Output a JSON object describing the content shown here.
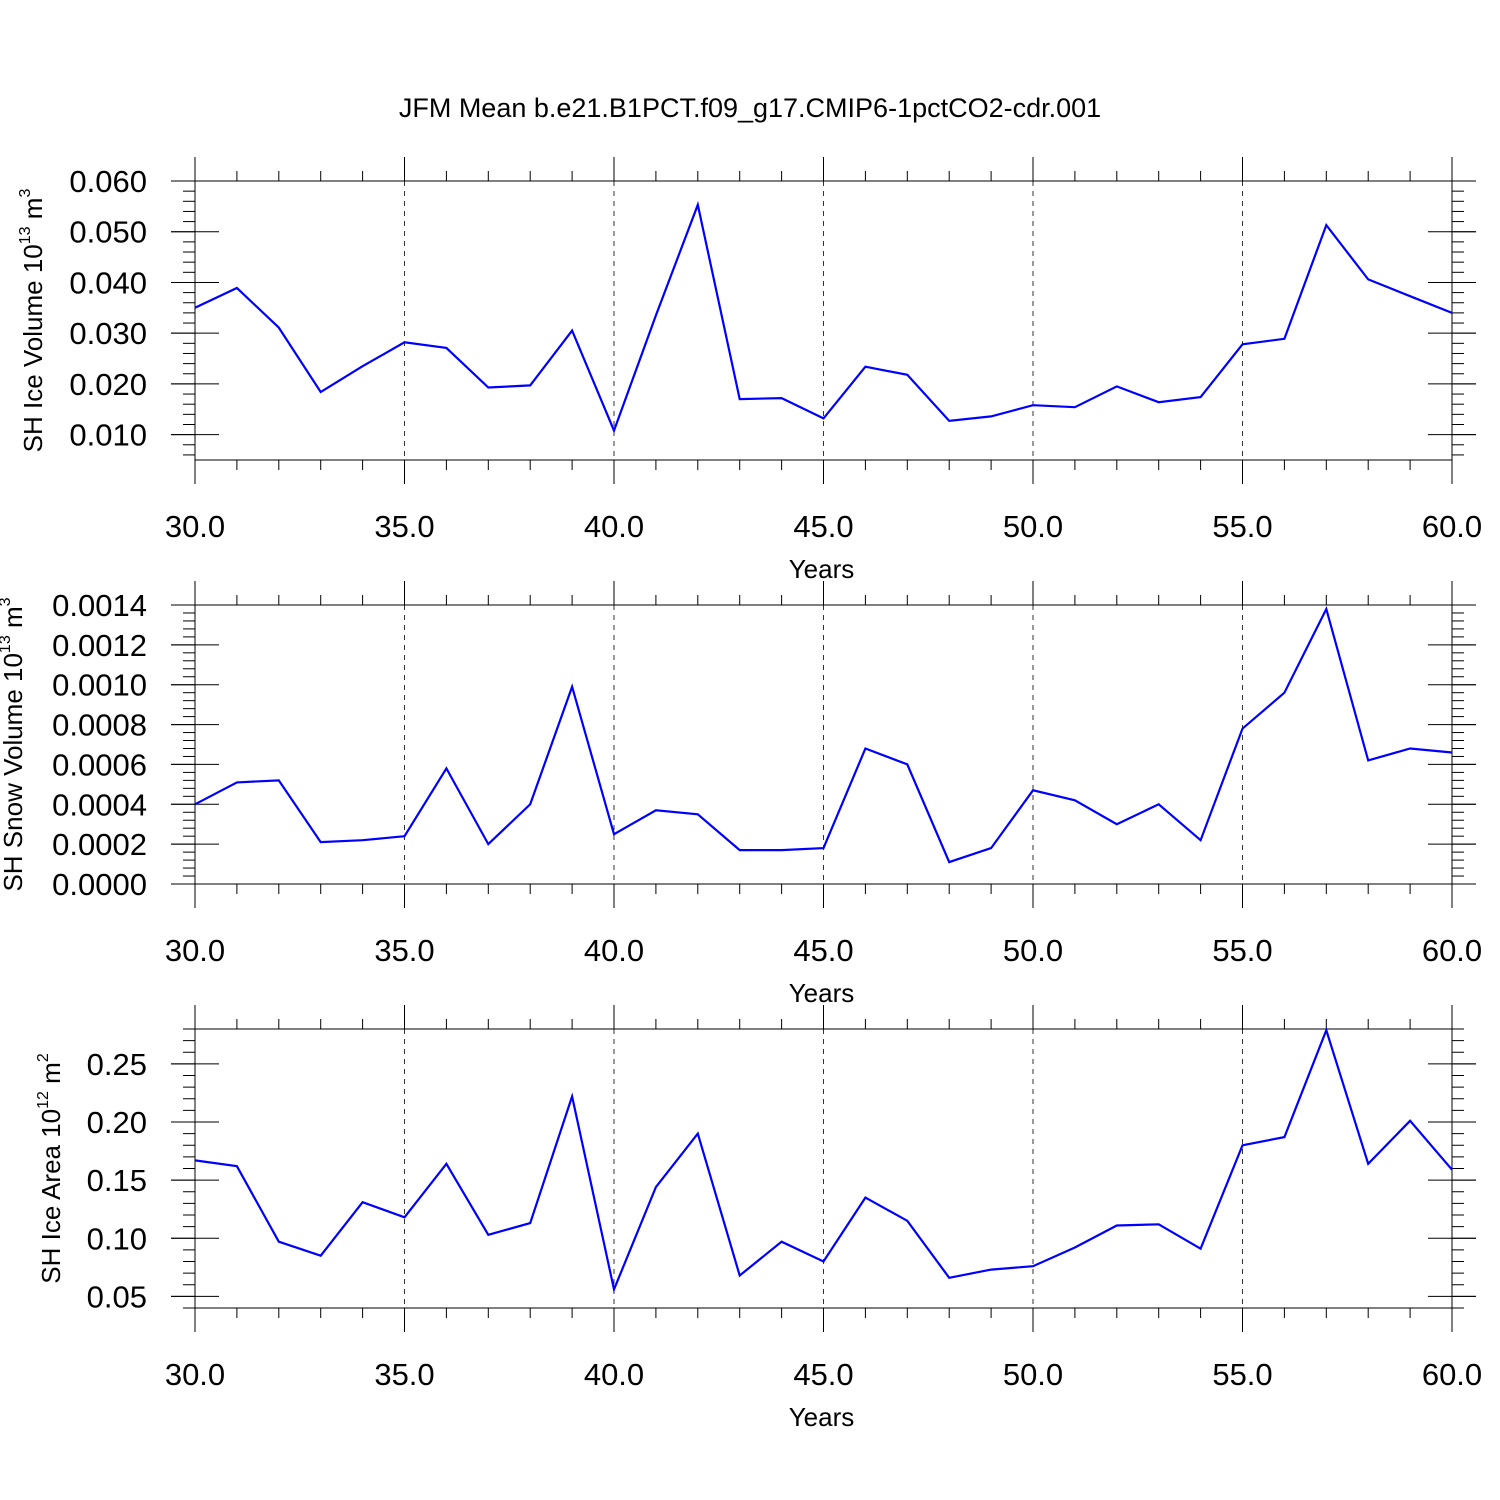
{
  "title": "JFM Mean b.e21.B1PCT.f09_g17.CMIP6-1pctCO2-cdr.001",
  "colors": {
    "line": "#0000ff",
    "axes": "#000000",
    "grid": "#444444"
  },
  "chart_data": [
    {
      "type": "line",
      "ylabel_main": "SH Ice Volume 10",
      "ylabel_sup": "13",
      "ylabel_unit": " m",
      "ylabel_unit_sup": "3",
      "xlabel": "Years",
      "xlim": [
        30,
        60
      ],
      "ylim": [
        0.005,
        0.06
      ],
      "xticks": [
        30,
        35,
        40,
        45,
        50,
        55,
        60
      ],
      "xtick_labels": [
        "30.0",
        "35.0",
        "40.0",
        "45.0",
        "50.0",
        "55.0",
        "60.0"
      ],
      "yticks": [
        0.01,
        0.02,
        0.03,
        0.04,
        0.05,
        0.06
      ],
      "ytick_labels": [
        "0.010",
        "0.020",
        "0.030",
        "0.040",
        "0.050",
        "0.060"
      ],
      "x": [
        30,
        31,
        32,
        33,
        34,
        35,
        36,
        37,
        38,
        39,
        40,
        41,
        42,
        43,
        44,
        45,
        46,
        47,
        48,
        49,
        50,
        51,
        52,
        53,
        54,
        55,
        56,
        57,
        58,
        59,
        60
      ],
      "values": [
        0.035,
        0.0389,
        0.0311,
        0.0184,
        0.0235,
        0.0282,
        0.0271,
        0.0193,
        0.0197,
        0.0305,
        0.0108,
        0.0335,
        0.0553,
        0.017,
        0.0172,
        0.0132,
        0.0234,
        0.0218,
        0.0127,
        0.0136,
        0.0158,
        0.0154,
        0.0195,
        0.0164,
        0.0174,
        0.0278,
        0.0289,
        0.0513,
        0.0406,
        0.0373,
        0.034
      ],
      "grid_x": [
        35,
        40,
        45,
        50,
        55
      ]
    },
    {
      "type": "line",
      "ylabel_main": "SH Snow Volume 10",
      "ylabel_sup": "13",
      "ylabel_unit": " m",
      "ylabel_unit_sup": "3",
      "xlabel": "Years",
      "xlim": [
        30,
        60
      ],
      "ylim": [
        0.0,
        0.0014
      ],
      "xticks": [
        30,
        35,
        40,
        45,
        50,
        55,
        60
      ],
      "xtick_labels": [
        "30.0",
        "35.0",
        "40.0",
        "45.0",
        "50.0",
        "55.0",
        "60.0"
      ],
      "yticks": [
        0.0,
        0.0002,
        0.0004,
        0.0006,
        0.0008,
        0.001,
        0.0012,
        0.0014
      ],
      "ytick_labels": [
        "0.0000",
        "0.0002",
        "0.0004",
        "0.0006",
        "0.0008",
        "0.0010",
        "0.0012",
        "0.0014"
      ],
      "x": [
        30,
        31,
        32,
        33,
        34,
        35,
        36,
        37,
        38,
        39,
        40,
        41,
        42,
        43,
        44,
        45,
        46,
        47,
        48,
        49,
        50,
        51,
        52,
        53,
        54,
        55,
        56,
        57,
        58,
        59,
        60
      ],
      "values": [
        0.0004,
        0.00051,
        0.00052,
        0.00021,
        0.00022,
        0.00024,
        0.00058,
        0.0002,
        0.0004,
        0.00099,
        0.00025,
        0.00037,
        0.00035,
        0.00017,
        0.00017,
        0.00018,
        0.00068,
        0.0006,
        0.00011,
        0.00018,
        0.00047,
        0.00042,
        0.0003,
        0.0004,
        0.00022,
        0.00078,
        0.00096,
        0.00138,
        0.00062,
        0.00068,
        0.00066
      ],
      "grid_x": [
        35,
        40,
        45,
        50,
        55
      ]
    },
    {
      "type": "line",
      "ylabel_main": "SH Ice Area 10",
      "ylabel_sup": "12",
      "ylabel_unit": " m",
      "ylabel_unit_sup": "2",
      "xlabel": "Years",
      "xlim": [
        30,
        60
      ],
      "ylim": [
        0.04,
        0.28
      ],
      "xticks": [
        30,
        35,
        40,
        45,
        50,
        55,
        60
      ],
      "xtick_labels": [
        "30.0",
        "35.0",
        "40.0",
        "45.0",
        "50.0",
        "55.0",
        "60.0"
      ],
      "yticks": [
        0.05,
        0.1,
        0.15,
        0.2,
        0.25
      ],
      "ytick_labels": [
        "0.05",
        "0.10",
        "0.15",
        "0.20",
        "0.25"
      ],
      "x": [
        30,
        31,
        32,
        33,
        34,
        35,
        36,
        37,
        38,
        39,
        40,
        41,
        42,
        43,
        44,
        45,
        46,
        47,
        48,
        49,
        50,
        51,
        52,
        53,
        54,
        55,
        56,
        57,
        58,
        59,
        60
      ],
      "values": [
        0.167,
        0.162,
        0.097,
        0.085,
        0.131,
        0.118,
        0.164,
        0.103,
        0.113,
        0.222,
        0.056,
        0.144,
        0.19,
        0.068,
        0.097,
        0.08,
        0.135,
        0.115,
        0.066,
        0.073,
        0.076,
        0.092,
        0.111,
        0.112,
        0.091,
        0.18,
        0.187,
        0.279,
        0.164,
        0.201,
        0.159
      ],
      "grid_x": [
        35,
        40,
        45,
        50,
        55
      ]
    }
  ]
}
